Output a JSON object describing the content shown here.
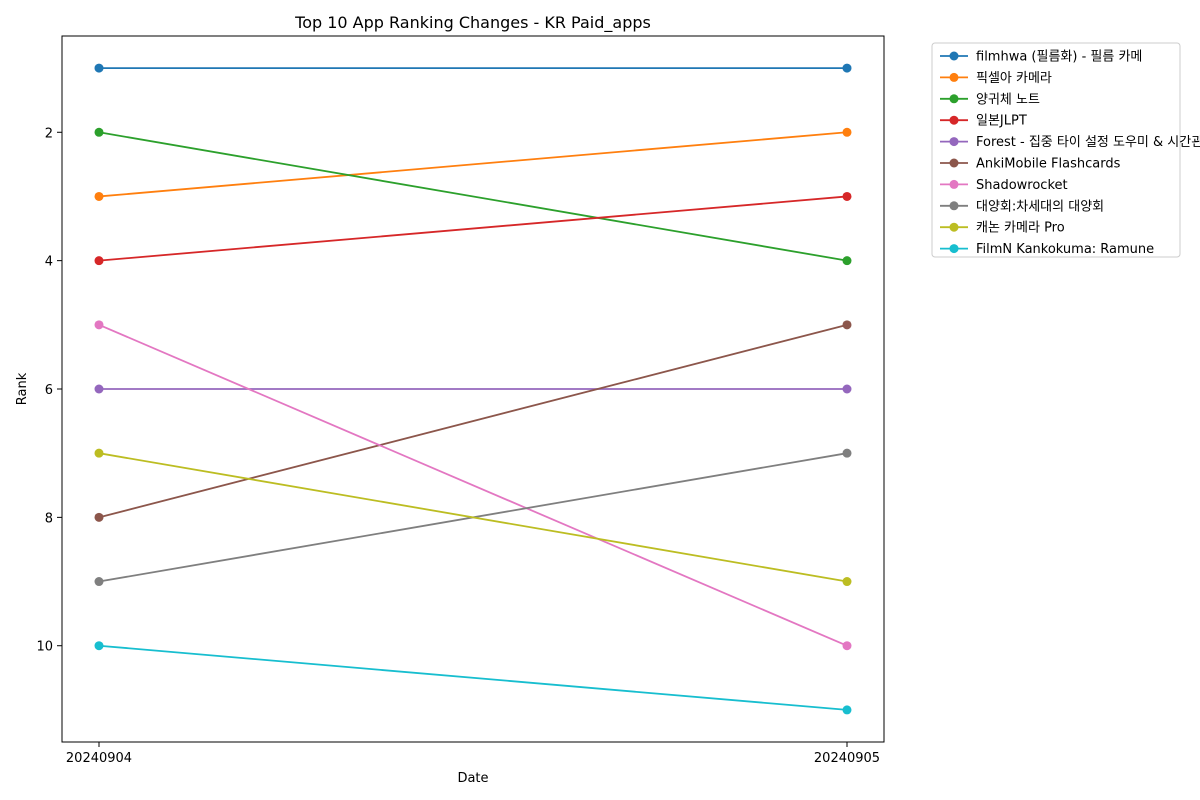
{
  "chart_data": {
    "type": "line",
    "title": "Top 10 App Ranking Changes - KR Paid_apps",
    "xlabel": "Date",
    "ylabel": "Rank",
    "x": [
      "20240904",
      "20240905"
    ],
    "y_ticks": [
      2,
      4,
      6,
      8,
      10
    ],
    "ylim": [
      11.5,
      0.5
    ],
    "y_inverted": true,
    "legend_position": "outside-top-right",
    "series": [
      {
        "name": "filmhwa (필름화) - 필름 카메",
        "color": "#1f77b4",
        "values": [
          1,
          1
        ]
      },
      {
        "name": "픽셀아 카메라",
        "color": "#ff7f0e",
        "values": [
          3,
          2
        ]
      },
      {
        "name": "양귀체 노트",
        "color": "#2ca02c",
        "values": [
          2,
          4
        ]
      },
      {
        "name": "일본JLPT",
        "color": "#d62728",
        "values": [
          4,
          3
        ]
      },
      {
        "name": "Forest - 집중 타이 설정 도우미 & 시간관리",
        "color": "#9467bd",
        "values": [
          6,
          6
        ]
      },
      {
        "name": "AnkiMobile Flashcards",
        "color": "#8c564b",
        "values": [
          8,
          5
        ]
      },
      {
        "name": "Shadowrocket",
        "color": "#e377c2",
        "values": [
          5,
          10
        ]
      },
      {
        "name": "대양회:차세대의 대양회",
        "color": "#7f7f7f",
        "values": [
          9,
          7
        ]
      },
      {
        "name": "캐논 카메라 Pro",
        "color": "#bcbd22",
        "values": [
          7,
          9
        ]
      },
      {
        "name": "FilmN Kankokuma: Ramune",
        "color": "#17becf",
        "values": [
          10,
          11
        ]
      }
    ]
  }
}
